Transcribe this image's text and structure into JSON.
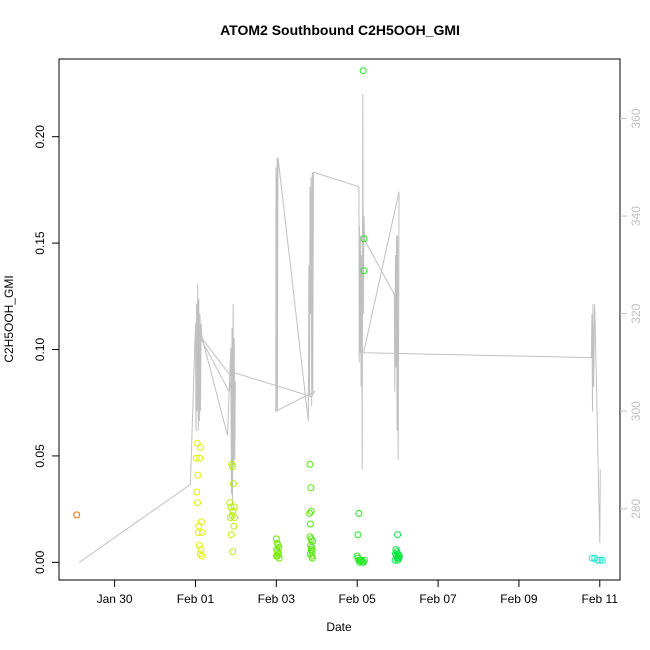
{
  "chart_data": {
    "type": "scatter",
    "title": "ATOM2 Southbound C2H5OOH_GMI",
    "xlabel": "Date",
    "ylabel": "C2H5OOH_GMI",
    "xlim": [
      "2017-01-28T15:00",
      "2017-02-11T12:00"
    ],
    "ylim": [
      -0.0083,
      0.2365
    ],
    "y2lim": [
      265.4,
      372.2
    ],
    "xticks": [
      {
        "label": "Jan 30",
        "value": "2017-01-30T00:00"
      },
      {
        "label": "Feb 01",
        "value": "2017-02-01T00:00"
      },
      {
        "label": "Feb 03",
        "value": "2017-02-03T00:00"
      },
      {
        "label": "Feb 05",
        "value": "2017-02-05T00:00"
      },
      {
        "label": "Feb 07",
        "value": "2017-02-07T00:00"
      },
      {
        "label": "Feb 09",
        "value": "2017-02-09T00:00"
      },
      {
        "label": "Feb 11",
        "value": "2017-02-11T00:00"
      }
    ],
    "yticks": [
      0.0,
      0.05,
      0.1,
      0.15,
      0.2
    ],
    "ytick_labels": [
      "0.00",
      "0.05",
      "0.10",
      "0.15",
      "0.20"
    ],
    "y2ticks": [
      280,
      300,
      320,
      340,
      360
    ],
    "y2tick_labels": [
      "280",
      "300",
      "320",
      "340",
      "360"
    ],
    "line_color": "#c0c0c0",
    "grid": false,
    "series": [
      {
        "color": "#ff6a00",
        "points": [
          [
            "2017-01-29T01:30",
            0.0223
          ]
        ]
      },
      {
        "color": "#e0f000",
        "points": [
          [
            "2017-02-01T00:30",
            0.049
          ],
          [
            "2017-02-01T01:00",
            0.056
          ],
          [
            "2017-02-01T03:00",
            0.054
          ],
          [
            "2017-02-01T01:30",
            0.041
          ],
          [
            "2017-02-01T02:30",
            0.049
          ],
          [
            "2017-02-01T00:45",
            0.033
          ],
          [
            "2017-02-01T01:15",
            0.028
          ],
          [
            "2017-02-01T02:00",
            0.017
          ],
          [
            "2017-02-01T03:30",
            0.019
          ],
          [
            "2017-02-01T04:00",
            0.014
          ],
          [
            "2017-02-01T01:45",
            0.014
          ],
          [
            "2017-02-01T02:15",
            0.008
          ],
          [
            "2017-02-01T03:15",
            0.006
          ],
          [
            "2017-02-01T02:45",
            0.004
          ],
          [
            "2017-02-01T03:45",
            0.003
          ]
        ]
      },
      {
        "color": "#b8f000",
        "points": [
          [
            "2017-02-01T21:30",
            0.046
          ],
          [
            "2017-02-01T22:00",
            0.045
          ],
          [
            "2017-02-01T22:30",
            0.037
          ],
          [
            "2017-02-01T20:30",
            0.028
          ],
          [
            "2017-02-01T21:00",
            0.026
          ],
          [
            "2017-02-01T23:00",
            0.026
          ],
          [
            "2017-02-01T22:15",
            0.024
          ],
          [
            "2017-02-01T21:45",
            0.022
          ],
          [
            "2017-02-01T20:45",
            0.021
          ],
          [
            "2017-02-01T23:15",
            0.021
          ],
          [
            "2017-02-01T22:45",
            0.017
          ],
          [
            "2017-02-01T21:15",
            0.013
          ],
          [
            "2017-02-01T22:05",
            0.005
          ]
        ]
      },
      {
        "color": "#70e800",
        "points": [
          [
            "2017-02-03T00:00",
            0.011
          ],
          [
            "2017-02-03T00:30",
            0.009
          ],
          [
            "2017-02-03T01:00",
            0.008
          ],
          [
            "2017-02-03T01:30",
            0.007
          ],
          [
            "2017-02-03T00:15",
            0.006
          ],
          [
            "2017-02-03T00:45",
            0.005
          ],
          [
            "2017-02-03T01:15",
            0.004
          ],
          [
            "2017-02-03T00:05",
            0.003
          ],
          [
            "2017-02-03T00:40",
            0.003
          ],
          [
            "2017-02-03T01:40",
            0.002
          ]
        ]
      },
      {
        "color": "#50e800",
        "points": [
          [
            "2017-02-03T20:00",
            0.046
          ],
          [
            "2017-02-03T20:30",
            0.035
          ],
          [
            "2017-02-03T19:45",
            0.023
          ],
          [
            "2017-02-03T20:45",
            0.024
          ],
          [
            "2017-02-03T20:15",
            0.018
          ],
          [
            "2017-02-03T20:00",
            0.012
          ],
          [
            "2017-02-03T20:40",
            0.011
          ],
          [
            "2017-02-03T21:30",
            0.01
          ],
          [
            "2017-02-03T20:20",
            0.008
          ],
          [
            "2017-02-03T21:00",
            0.007
          ],
          [
            "2017-02-03T20:50",
            0.006
          ],
          [
            "2017-02-03T21:15",
            0.005
          ],
          [
            "2017-02-03T20:10",
            0.004
          ],
          [
            "2017-02-03T20:55",
            0.003
          ],
          [
            "2017-02-03T21:20",
            0.002
          ]
        ]
      },
      {
        "color": "#20e820",
        "points": [
          [
            "2017-02-05T03:30",
            0.231
          ],
          [
            "2017-02-05T04:00",
            0.152
          ],
          [
            "2017-02-05T04:00",
            0.137
          ],
          [
            "2017-02-05T01:00",
            0.023
          ],
          [
            "2017-02-05T00:30",
            0.013
          ],
          [
            "2017-02-05T00:00",
            0.003
          ],
          [
            "2017-02-05T00:30",
            0.002
          ],
          [
            "2017-02-05T01:00",
            0.001
          ],
          [
            "2017-02-05T01:30",
            0.0
          ],
          [
            "2017-02-05T02:00",
            0.001
          ],
          [
            "2017-02-05T02:30",
            0.001
          ],
          [
            "2017-02-05T03:00",
            0.0
          ],
          [
            "2017-02-05T03:45",
            0.0
          ],
          [
            "2017-02-05T04:15",
            0.001
          ]
        ]
      },
      {
        "color": "#00e840",
        "points": [
          [
            "2017-02-06T00:00",
            0.013
          ],
          [
            "2017-02-05T23:00",
            0.006
          ],
          [
            "2017-02-05T23:30",
            0.005
          ],
          [
            "2017-02-06T00:15",
            0.004
          ],
          [
            "2017-02-05T22:45",
            0.004
          ],
          [
            "2017-02-06T00:30",
            0.003
          ],
          [
            "2017-02-05T23:15",
            0.003
          ],
          [
            "2017-02-06T01:00",
            0.003
          ],
          [
            "2017-02-05T23:45",
            0.002
          ],
          [
            "2017-02-06T00:45",
            0.002
          ],
          [
            "2017-02-05T22:30",
            0.001
          ],
          [
            "2017-02-06T00:05",
            0.001
          ]
        ]
      },
      {
        "color": "#20e8d0",
        "points": [
          [
            "2017-02-10T19:30",
            0.002
          ],
          [
            "2017-02-10T21:00",
            0.002
          ],
          [
            "2017-02-10T22:30",
            0.001
          ],
          [
            "2017-02-11T00:00",
            0.001
          ],
          [
            "2017-02-11T01:30",
            0.001
          ]
        ]
      }
    ],
    "line_series": {
      "axis": "right",
      "points": [
        [
          "2017-01-29T03:00",
          269
        ],
        [
          "2017-01-31T21:00",
          285
        ],
        [
          "2017-02-01T00:00",
          318
        ],
        [
          "2017-02-01T00:20",
          296
        ],
        [
          "2017-02-01T00:40",
          322
        ],
        [
          "2017-02-01T01:00",
          300
        ],
        [
          "2017-02-01T01:20",
          326
        ],
        [
          "2017-02-01T01:40",
          296
        ],
        [
          "2017-02-01T02:00",
          323
        ],
        [
          "2017-02-01T02:20",
          298
        ],
        [
          "2017-02-01T02:40",
          320
        ],
        [
          "2017-02-01T03:00",
          300
        ],
        [
          "2017-02-01T03:20",
          318
        ],
        [
          "2017-02-01T03:40",
          316
        ],
        [
          "2017-02-01T04:00",
          315
        ],
        [
          "2017-02-01T19:00",
          295
        ],
        [
          "2017-02-01T21:00",
          313
        ],
        [
          "2017-02-01T21:20",
          283
        ],
        [
          "2017-02-01T21:40",
          317
        ],
        [
          "2017-02-01T22:00",
          281
        ],
        [
          "2017-02-01T22:20",
          322
        ],
        [
          "2017-02-01T22:40",
          289
        ],
        [
          "2017-02-01T23:00",
          315
        ],
        [
          "2017-02-01T23:20",
          290
        ],
        [
          "2017-02-01T23:40",
          306
        ],
        [
          "2017-02-01T01:30",
          316
        ],
        [
          "2017-02-01T20:00",
          304
        ],
        [
          "2017-02-01T22:00",
          308
        ],
        [
          "2017-02-03T21:00",
          303
        ],
        [
          "2017-02-03T22:30",
          304
        ],
        [
          "2017-02-02T23:40",
          300
        ],
        [
          "2017-02-02T23:50",
          350
        ],
        [
          "2017-02-03T00:00",
          300
        ],
        [
          "2017-02-03T00:10",
          348
        ],
        [
          "2017-02-03T00:20",
          320
        ],
        [
          "2017-02-03T00:30",
          352
        ],
        [
          "2017-02-03T00:40",
          300
        ],
        [
          "2017-02-03T01:00",
          352
        ],
        [
          "2017-02-03T19:00",
          298
        ],
        [
          "2017-02-03T19:20",
          330
        ],
        [
          "2017-02-03T19:40",
          303
        ],
        [
          "2017-02-03T20:00",
          346
        ],
        [
          "2017-02-03T20:20",
          320
        ],
        [
          "2017-02-03T20:40",
          348
        ],
        [
          "2017-02-03T21:00",
          301
        ],
        [
          "2017-02-03T21:20",
          349
        ],
        [
          "2017-02-03T21:40",
          304
        ],
        [
          "2017-02-03T22:00",
          349
        ],
        [
          "2017-02-05T01:00",
          346
        ],
        [
          "2017-02-05T01:10",
          310
        ],
        [
          "2017-02-05T01:20",
          338
        ],
        [
          "2017-02-05T01:40",
          312
        ],
        [
          "2017-02-05T02:00",
          336
        ],
        [
          "2017-02-05T02:20",
          305
        ],
        [
          "2017-02-05T02:40",
          332
        ],
        [
          "2017-02-05T03:00",
          288
        ],
        [
          "2017-02-05T03:20",
          365
        ],
        [
          "2017-02-05T03:40",
          320
        ],
        [
          "2017-02-05T04:00",
          340
        ],
        [
          "2017-02-05T04:30",
          335
        ],
        [
          "2017-02-05T22:00",
          324
        ],
        [
          "2017-02-05T22:20",
          304
        ],
        [
          "2017-02-05T22:40",
          332
        ],
        [
          "2017-02-05T23:00",
          309
        ],
        [
          "2017-02-05T23:20",
          336
        ],
        [
          "2017-02-05T23:40",
          296
        ],
        [
          "2017-02-06T00:00",
          336
        ],
        [
          "2017-02-06T00:20",
          290
        ],
        [
          "2017-02-06T00:40",
          320
        ],
        [
          "2017-02-06T00:50",
          345
        ],
        [
          "2017-02-05T03:50",
          312
        ],
        [
          "2017-02-10T19:00",
          311
        ],
        [
          "2017-02-10T19:20",
          320
        ],
        [
          "2017-02-10T19:40",
          300
        ],
        [
          "2017-02-10T20:00",
          322
        ],
        [
          "2017-02-10T20:20",
          305
        ],
        [
          "2017-02-10T21:00",
          322
        ],
        [
          "2017-02-10T22:00",
          306
        ],
        [
          "2017-02-11T00:00",
          273
        ],
        [
          "2017-02-11T00:20",
          288
        ]
      ]
    }
  }
}
